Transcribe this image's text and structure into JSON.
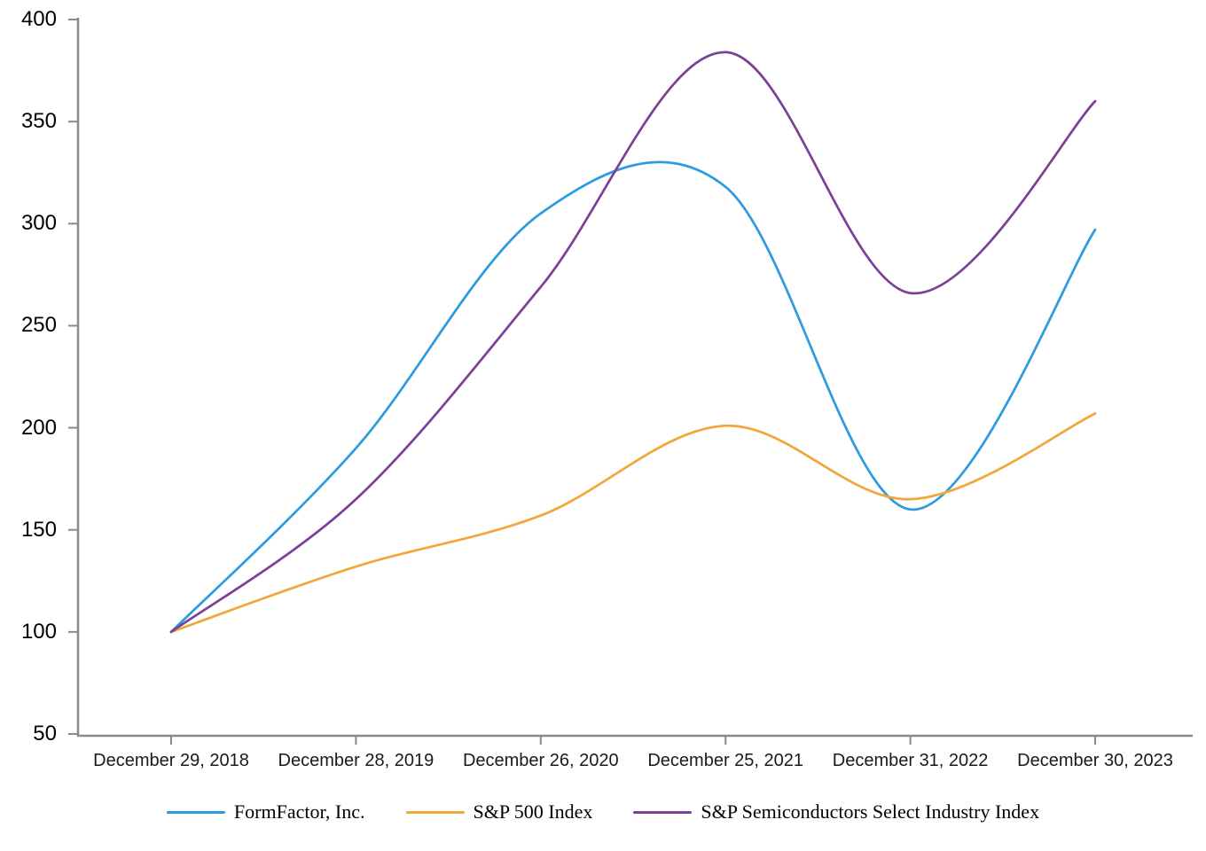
{
  "chart_data": {
    "type": "line",
    "smoothed": true,
    "grid": false,
    "legend_position": "bottom",
    "axis_color": "#8a8a8a",
    "text_color": "#000000",
    "ylim": [
      50,
      400
    ],
    "y_tick_step": 50,
    "y_tick_labels": [
      "50",
      "100",
      "150",
      "200",
      "250",
      "300",
      "350",
      "400"
    ],
    "categories": [
      "December 29, 2018",
      "December 28, 2019",
      "December 26, 2020",
      "December 25, 2021",
      "December 31, 2022",
      "December 30, 2023"
    ],
    "series": [
      {
        "name": "FormFactor, Inc.",
        "color": "#2e9be0",
        "values": [
          100,
          190,
          305,
          318,
          160,
          297
        ]
      },
      {
        "name": "S&P 500 Index",
        "color": "#f2a63c",
        "values": [
          100,
          132,
          157,
          201,
          165,
          207
        ]
      },
      {
        "name": "S&P Semiconductors Select Industry Index",
        "color": "#7b4198",
        "values": [
          100,
          165,
          269,
          384,
          266,
          360
        ]
      }
    ]
  }
}
